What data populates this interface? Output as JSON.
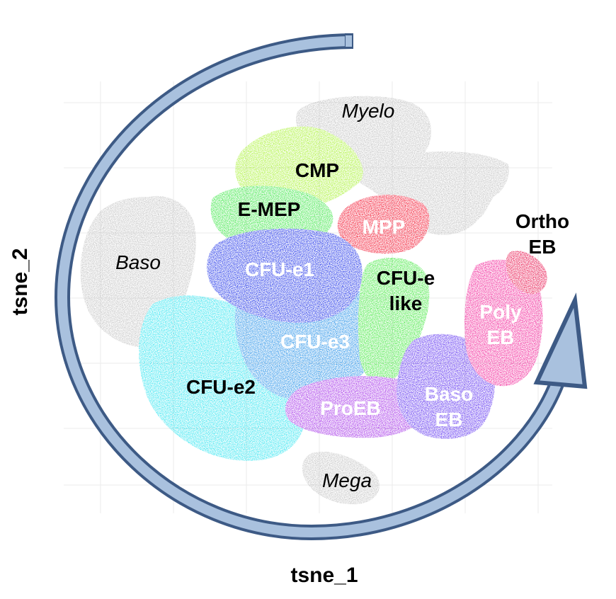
{
  "chart_data": {
    "type": "scatter",
    "xlabel": "tsne_1",
    "ylabel": "tsne_2",
    "grid": true,
    "legend": "none",
    "clusters": [
      {
        "name": "Myelo",
        "label": [
          "Myelo"
        ],
        "color": "#c0c0c0",
        "label_style": "italic",
        "label_color": "#000000"
      },
      {
        "name": "Baso",
        "label": [
          "Baso"
        ],
        "color": "#c0c0c0",
        "label_style": "italic",
        "label_color": "#000000"
      },
      {
        "name": "Mega",
        "label": [
          "Mega"
        ],
        "color": "#c0c0c0",
        "label_style": "italic",
        "label_color": "#000000"
      },
      {
        "name": "CMP",
        "label": [
          "CMP"
        ],
        "color": "#a6f22e",
        "label_style": "bold",
        "label_color": "#000000"
      },
      {
        "name": "E-MEP",
        "label": [
          "E-MEP"
        ],
        "color": "#35e63f",
        "label_style": "bold",
        "label_color": "#000000"
      },
      {
        "name": "MPP",
        "label": [
          "MPP"
        ],
        "color": "#f2102a",
        "label_style": "bold",
        "label_color": "#ffffff"
      },
      {
        "name": "CFU-e1",
        "label": [
          "CFU-e1"
        ],
        "color": "#1a2ee8",
        "label_style": "bold",
        "label_color": "#ffffff"
      },
      {
        "name": "CFU-e like",
        "label": [
          "CFU-e",
          "like"
        ],
        "color": "#3ee83a",
        "label_style": "bold",
        "label_color": "#000000"
      },
      {
        "name": "CFU-e3",
        "label": [
          "CFU-e3"
        ],
        "color": "#1e8de8",
        "label_style": "bold",
        "label_color": "#ffffff"
      },
      {
        "name": "CFU-e2",
        "label": [
          "CFU-e2"
        ],
        "color": "#2be4f0",
        "label_style": "bold",
        "label_color": "#000000"
      },
      {
        "name": "ProEB",
        "label": [
          "ProEB"
        ],
        "color": "#a22de8",
        "label_style": "bold",
        "label_color": "#ffffff"
      },
      {
        "name": "Baso EB",
        "label": [
          "Baso",
          "EB"
        ],
        "color": "#5b2ef0",
        "label_style": "bold",
        "label_color": "#ffffff"
      },
      {
        "name": "Poly EB",
        "label": [
          "Poly",
          "EB"
        ],
        "color": "#f21e96",
        "label_style": "bold",
        "label_color": "#ffffff"
      },
      {
        "name": "Ortho EB",
        "label": [
          "Ortho",
          "EB"
        ],
        "color": "#e8104a",
        "label_style": "bold",
        "label_color": "#000000"
      }
    ],
    "trajectory_arrow": {
      "direction": "clockwise",
      "color": "#9db6d6",
      "outline": "#3d5a85"
    }
  }
}
